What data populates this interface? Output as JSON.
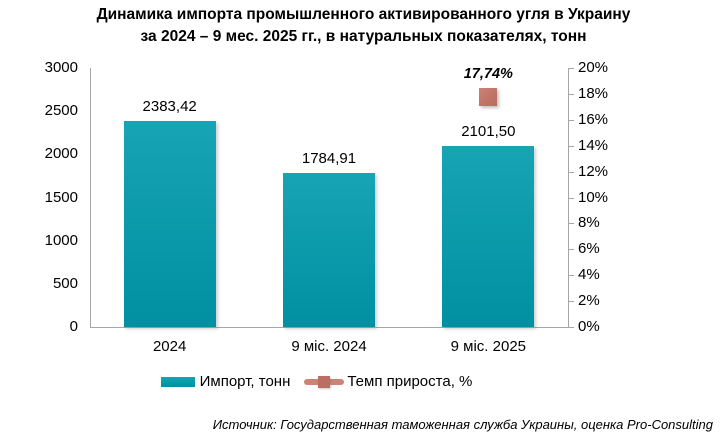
{
  "title": {
    "line1": "Динамика импорта промышленного активированного угля в Украину",
    "line2": "за 2024 – 9 мес. 2025 гг., в натуральных показателях, тонн"
  },
  "chart_data": {
    "type": "bar",
    "title": "Динамика импорта промышленного активированного угля в Украину за 2024 – 9 мес. 2025 гг., в натуральных показателях, тонн",
    "categories": [
      "2024",
      "9 міс. 2024",
      "9 міс. 2025"
    ],
    "series": [
      {
        "name": "Импорт, тонн",
        "type": "bar",
        "axis": "left",
        "values": [
          2383.42,
          1784.91,
          2101.5
        ],
        "labels": [
          "2383,42",
          "1784,91",
          "2101,50"
        ],
        "color": "#0d9dae"
      },
      {
        "name": "Темп прироста, %",
        "type": "point",
        "axis": "right",
        "values": [
          null,
          null,
          17.74
        ],
        "labels": [
          null,
          null,
          "17,74%"
        ],
        "color": "#c0756a"
      }
    ],
    "left_axis": {
      "min": 0,
      "max": 3000,
      "step": 500,
      "ticks": [
        "3000",
        "2500",
        "2000",
        "1500",
        "1000",
        "500",
        "0"
      ]
    },
    "right_axis": {
      "min": 0,
      "max": 20,
      "step": 2,
      "ticks": [
        "20%",
        "18%",
        "16%",
        "14%",
        "12%",
        "10%",
        "8%",
        "6%",
        "4%",
        "2%",
        "0%"
      ]
    },
    "grid": false,
    "legend_position": "bottom"
  },
  "legend": [
    {
      "label": "Импорт, тонн",
      "swatch": "bar",
      "color": "#0d9dae"
    },
    {
      "label": "Темп прироста, %",
      "swatch": "line-marker",
      "color": "#c0756a"
    }
  ],
  "footer": {
    "source": "Источник: Государственная таможенная служба Украины, оценка Pro-Consulting"
  },
  "colors": {
    "bar_top": "#17a4b4",
    "bar_bottom": "#0090a2",
    "marker": "#bb6f63",
    "axis_line": "#a6a6a6",
    "text": "#000000"
  }
}
